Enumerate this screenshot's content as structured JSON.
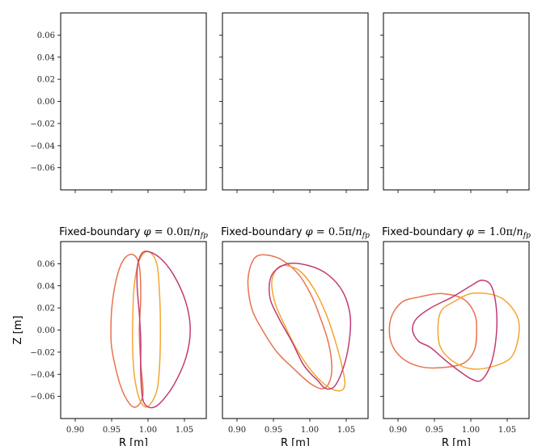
{
  "chart_data": {
    "type": "line",
    "layout": "2x3 grid of panels, top row empty",
    "shared_axes": {
      "xlabel": "R [m]",
      "ylabel": "Z [m]",
      "xlim": [
        0.88,
        1.08
      ],
      "x_ticks": [
        0.9,
        0.95,
        1.0,
        1.05
      ],
      "x_tick_labels": [
        "0.90",
        "0.95",
        "1.00",
        "1.05"
      ],
      "ylim": [
        -0.08,
        0.08
      ],
      "y_ticks": [
        0.06,
        0.04,
        0.02,
        0.0,
        -0.02,
        -0.04,
        -0.06
      ],
      "y_tick_labels": [
        "0.06",
        "0.04",
        "0.02",
        "0.00",
        "−0.02",
        "−0.04",
        "−0.06"
      ],
      "grid": false
    },
    "series_colors": [
      "#e8734f",
      "#f4a531",
      "#c23b75"
    ],
    "panels": [
      {
        "row": 0,
        "col": 0,
        "title": "",
        "curves": []
      },
      {
        "row": 0,
        "col": 1,
        "title": "",
        "curves": []
      },
      {
        "row": 0,
        "col": 2,
        "title": "",
        "curves": []
      },
      {
        "row": 1,
        "col": 0,
        "title_prefix": "Fixed-boundary ",
        "title_phi": "φ",
        "title_eq": " = 0.0π/",
        "title_n": "n",
        "title_sub": "fp",
        "curves": [
          {
            "color": "#e8734f",
            "points": [
              [
                0.98,
                0.068
              ],
              [
                0.988,
                0.058
              ],
              [
                0.99,
                0.03
              ],
              [
                0.988,
                0.0
              ],
              [
                0.99,
                -0.03
              ],
              [
                0.993,
                -0.058
              ],
              [
                0.985,
                -0.069
              ],
              [
                0.975,
                -0.067
              ],
              [
                0.962,
                -0.05
              ],
              [
                0.951,
                -0.02
              ],
              [
                0.949,
                0.0
              ],
              [
                0.951,
                0.025
              ],
              [
                0.958,
                0.05
              ],
              [
                0.968,
                0.065
              ],
              [
                0.98,
                0.068
              ]
            ]
          },
          {
            "color": "#f4a531",
            "points": [
              [
                1.0,
                0.071
              ],
              [
                1.012,
                0.06
              ],
              [
                1.016,
                0.03
              ],
              [
                1.017,
                0.0
              ],
              [
                1.016,
                -0.03
              ],
              [
                1.012,
                -0.055
              ],
              [
                1.0,
                -0.069
              ],
              [
                0.99,
                -0.065
              ],
              [
                0.982,
                -0.045
              ],
              [
                0.979,
                -0.02
              ],
              [
                0.979,
                0.01
              ],
              [
                0.981,
                0.04
              ],
              [
                0.988,
                0.063
              ],
              [
                1.0,
                0.071
              ]
            ]
          },
          {
            "color": "#c23b75",
            "points": [
              [
                0.995,
                0.071
              ],
              [
                1.015,
                0.066
              ],
              [
                1.035,
                0.05
              ],
              [
                1.052,
                0.025
              ],
              [
                1.058,
                0.0
              ],
              [
                1.052,
                -0.025
              ],
              [
                1.035,
                -0.05
              ],
              [
                1.015,
                -0.067
              ],
              [
                1.002,
                -0.07
              ],
              [
                0.993,
                -0.063
              ],
              [
                0.99,
                -0.04
              ],
              [
                0.99,
                -0.01
              ],
              [
                0.988,
                0.015
              ],
              [
                0.985,
                0.04
              ],
              [
                0.986,
                0.06
              ],
              [
                0.995,
                0.071
              ]
            ]
          }
        ]
      },
      {
        "row": 1,
        "col": 1,
        "title_prefix": "Fixed-boundary ",
        "title_phi": "φ",
        "title_eq": " = 0.5π/",
        "title_n": "n",
        "title_sub": "fp",
        "curves": [
          {
            "color": "#e8734f",
            "points": [
              [
                0.935,
                0.068
              ],
              [
                0.96,
                0.064
              ],
              [
                0.985,
                0.05
              ],
              [
                1.003,
                0.03
              ],
              [
                1.015,
                0.01
              ],
              [
                1.025,
                -0.01
              ],
              [
                1.03,
                -0.03
              ],
              [
                1.028,
                -0.045
              ],
              [
                1.018,
                -0.053
              ],
              [
                1.0,
                -0.048
              ],
              [
                0.978,
                -0.035
              ],
              [
                0.955,
                -0.02
              ],
              [
                0.935,
                0.0
              ],
              [
                0.92,
                0.02
              ],
              [
                0.915,
                0.045
              ],
              [
                0.922,
                0.063
              ],
              [
                0.935,
                0.068
              ]
            ]
          },
          {
            "color": "#f4a531",
            "points": [
              [
                0.96,
                0.058
              ],
              [
                0.985,
                0.054
              ],
              [
                1.005,
                0.038
              ],
              [
                1.022,
                0.015
              ],
              [
                1.035,
                -0.01
              ],
              [
                1.045,
                -0.035
              ],
              [
                1.048,
                -0.05
              ],
              [
                1.04,
                -0.055
              ],
              [
                1.022,
                -0.05
              ],
              [
                1.0,
                -0.035
              ],
              [
                0.98,
                -0.015
              ],
              [
                0.965,
                0.005
              ],
              [
                0.952,
                0.025
              ],
              [
                0.948,
                0.045
              ],
              [
                0.96,
                0.058
              ]
            ]
          },
          {
            "color": "#c23b75",
            "points": [
              [
                0.97,
                0.06
              ],
              [
                1.0,
                0.058
              ],
              [
                1.025,
                0.05
              ],
              [
                1.045,
                0.035
              ],
              [
                1.055,
                0.015
              ],
              [
                1.055,
                -0.005
              ],
              [
                1.048,
                -0.03
              ],
              [
                1.035,
                -0.05
              ],
              [
                1.022,
                -0.053
              ],
              [
                1.01,
                -0.045
              ],
              [
                1.002,
                -0.04
              ],
              [
                0.99,
                -0.03
              ],
              [
                0.975,
                -0.01
              ],
              [
                0.958,
                0.01
              ],
              [
                0.945,
                0.03
              ],
              [
                0.948,
                0.05
              ],
              [
                0.97,
                0.06
              ]
            ]
          }
        ]
      },
      {
        "row": 1,
        "col": 2,
        "title_prefix": "Fixed-boundary ",
        "title_phi": "φ",
        "title_eq": " = 1.0π/",
        "title_n": "n",
        "title_sub": "fp",
        "curves": [
          {
            "color": "#e8734f",
            "points": [
              [
                0.93,
                0.03
              ],
              [
                0.96,
                0.033
              ],
              [
                0.99,
                0.028
              ],
              [
                1.005,
                0.015
              ],
              [
                1.008,
                0.0
              ],
              [
                1.005,
                -0.018
              ],
              [
                0.99,
                -0.03
              ],
              [
                0.96,
                -0.034
              ],
              [
                0.93,
                -0.033
              ],
              [
                0.905,
                -0.025
              ],
              [
                0.89,
                -0.01
              ],
              [
                0.89,
                0.01
              ],
              [
                0.905,
                0.025
              ],
              [
                0.93,
                0.03
              ]
            ]
          },
          {
            "color": "#f4a531",
            "points": [
              [
                0.975,
                0.025
              ],
              [
                1.0,
                0.033
              ],
              [
                1.03,
                0.032
              ],
              [
                1.05,
                0.025
              ],
              [
                1.065,
                0.01
              ],
              [
                1.065,
                -0.008
              ],
              [
                1.055,
                -0.025
              ],
              [
                1.03,
                -0.033
              ],
              [
                1.0,
                -0.035
              ],
              [
                0.975,
                -0.028
              ],
              [
                0.958,
                -0.015
              ],
              [
                0.955,
                0.005
              ],
              [
                0.96,
                0.018
              ],
              [
                0.975,
                0.025
              ]
            ]
          },
          {
            "color": "#c23b75",
            "points": [
              [
                0.925,
                0.01
              ],
              [
                0.945,
                0.02
              ],
              [
                0.975,
                0.03
              ],
              [
                1.0,
                0.04
              ],
              [
                1.015,
                0.045
              ],
              [
                1.028,
                0.04
              ],
              [
                1.035,
                0.02
              ],
              [
                1.035,
                -0.005
              ],
              [
                1.028,
                -0.03
              ],
              [
                1.015,
                -0.045
              ],
              [
                1.0,
                -0.044
              ],
              [
                0.97,
                -0.03
              ],
              [
                0.945,
                -0.016
              ],
              [
                0.928,
                -0.01
              ],
              [
                0.92,
                0.0
              ],
              [
                0.925,
                0.01
              ]
            ]
          }
        ]
      }
    ]
  }
}
